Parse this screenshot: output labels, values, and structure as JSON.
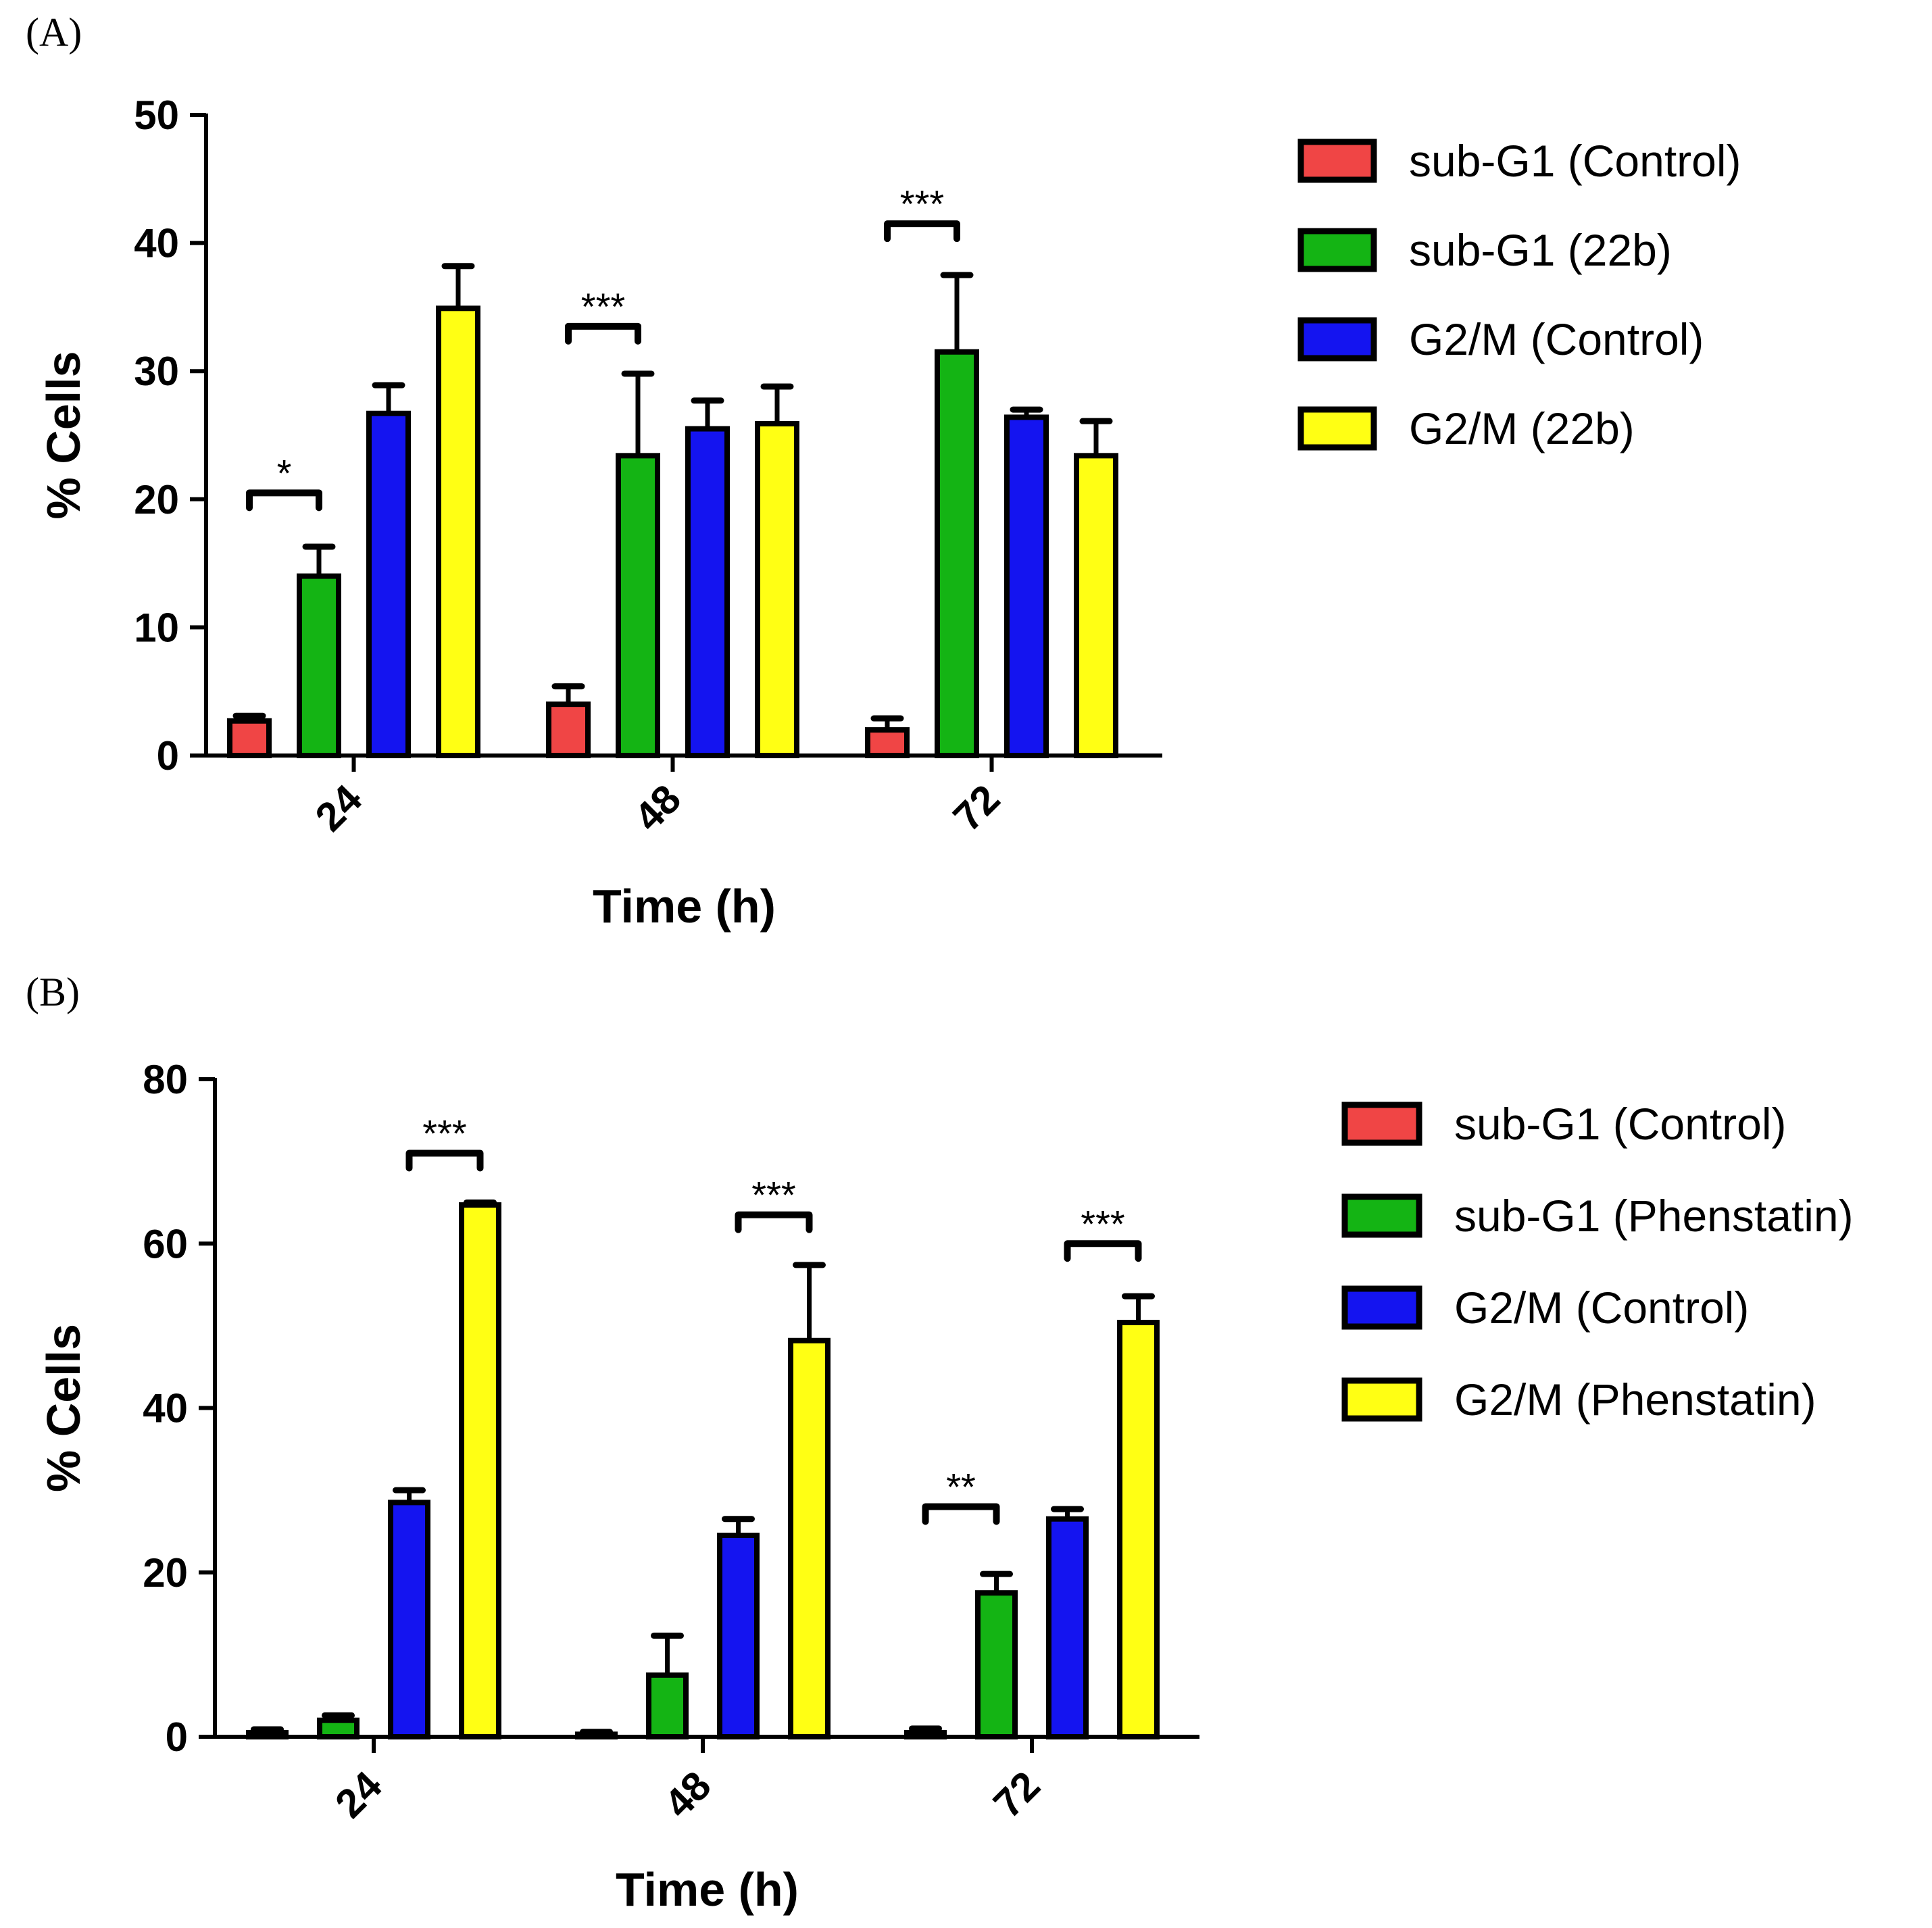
{
  "chart_data": [
    {
      "panel_label": "(A)",
      "type": "bar",
      "xlabel": "Time (h)",
      "ylabel": "% Cells",
      "ylim": [
        0,
        50
      ],
      "yticks": [
        "0",
        "10",
        "20",
        "30",
        "40",
        "50"
      ],
      "categories": [
        "24",
        "48",
        "72"
      ],
      "grid": false,
      "legend_position": "right",
      "series": [
        {
          "name": "sub-G1 (Control)",
          "color": "#f04545",
          "values": [
            2.7,
            4.0,
            2.0
          ],
          "errors": [
            0.4,
            1.4,
            0.9
          ]
        },
        {
          "name": "sub-G1 (22b)",
          "color": "#14b414",
          "values": [
            14.0,
            23.4,
            31.5
          ],
          "errors": [
            2.3,
            6.4,
            6.0
          ]
        },
        {
          "name": "G2/M (Control)",
          "color": "#1414f0",
          "values": [
            26.7,
            25.5,
            26.4
          ],
          "errors": [
            2.2,
            2.2,
            0.6
          ]
        },
        {
          "name": "G2/M (22b)",
          "color": "#ffff14",
          "values": [
            34.9,
            25.9,
            23.4
          ],
          "errors": [
            3.3,
            2.9,
            2.7
          ]
        }
      ],
      "significance": [
        {
          "label": "*",
          "category_index": 0,
          "from_series": 0,
          "to_series": 1,
          "y": 20.5
        },
        {
          "label": "***",
          "category_index": 1,
          "from_series": 0,
          "to_series": 1,
          "y": 33.5
        },
        {
          "label": "***",
          "category_index": 2,
          "from_series": 0,
          "to_series": 1,
          "y": 41.5
        }
      ]
    },
    {
      "panel_label": "(B)",
      "type": "bar",
      "xlabel": "Time (h)",
      "ylabel": "% Cells",
      "ylim": [
        0,
        80
      ],
      "yticks": [
        "0",
        "20",
        "40",
        "60",
        "80"
      ],
      "categories": [
        "24",
        "48",
        "72"
      ],
      "grid": false,
      "legend_position": "right",
      "series": [
        {
          "name": "sub-G1 (Control)",
          "color": "#f04545",
          "values": [
            0.5,
            0.3,
            0.5
          ],
          "errors": [
            0.4,
            0.3,
            0.5
          ]
        },
        {
          "name": "sub-G1 (Phenstatin)",
          "color": "#14b414",
          "values": [
            2.0,
            7.5,
            17.5
          ],
          "errors": [
            0.6,
            4.8,
            2.3
          ]
        },
        {
          "name": "G2/M (Control)",
          "color": "#1414f0",
          "values": [
            28.5,
            24.5,
            26.5
          ],
          "errors": [
            1.5,
            2.0,
            1.2
          ]
        },
        {
          "name": "G2/M (Phenstatin)",
          "color": "#ffff14",
          "values": [
            64.7,
            48.2,
            50.4
          ],
          "errors": [
            0.3,
            9.2,
            3.2
          ]
        }
      ],
      "significance": [
        {
          "label": "***",
          "category_index": 0,
          "from_series": 2,
          "to_series": 3,
          "y": 71
        },
        {
          "label": "***",
          "category_index": 1,
          "from_series": 2,
          "to_series": 3,
          "y": 63.5
        },
        {
          "label": "**",
          "category_index": 2,
          "from_series": 0,
          "to_series": 1,
          "y": 28
        },
        {
          "label": "***",
          "category_index": 2,
          "from_series": 2,
          "to_series": 3,
          "y": 60
        }
      ]
    }
  ]
}
